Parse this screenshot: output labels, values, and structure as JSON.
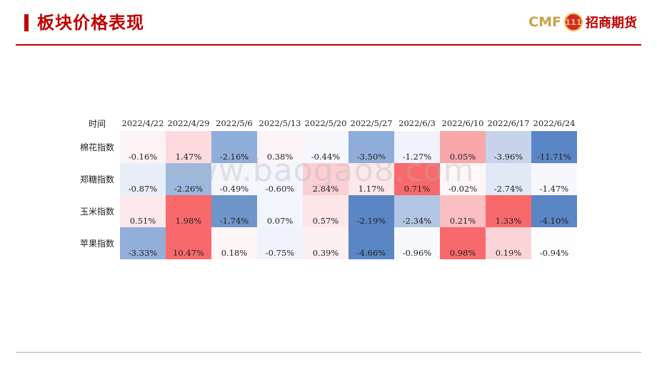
{
  "header": {
    "title": "板块价格表现",
    "logo_text": "CMF",
    "logo_mark": "111",
    "logo_cn": "招商期货"
  },
  "watermark": "www.baogao8.com",
  "table": {
    "corner_label": "时间",
    "columns": [
      "2022/4/22",
      "2022/4/29",
      "2022/5/6",
      "2022/5/13",
      "2022/5/20",
      "2022/5/27",
      "2022/6/3",
      "2022/6/10",
      "2022/6/17",
      "2022/6/24"
    ],
    "rows": [
      {
        "label": "棉花指数",
        "values": [
          "-0.16%",
          "1.47%",
          "-2.16%",
          "0.38%",
          "-0.44%",
          "-3.50%",
          "-1.27%",
          "0.05%",
          "-3.96%",
          "-11.71%"
        ],
        "colors": [
          "#fdf3f4",
          "#fbd9dd",
          "#8fadd9",
          "#fbf3f5",
          "#f6f7fc",
          "#8fadd9",
          "#f0f3fb",
          "#f9a7ab",
          "#c6d3ea",
          "#5b86c5"
        ]
      },
      {
        "label": "郑糖指数",
        "values": [
          "-0.87%",
          "-2.26%",
          "-0.49%",
          "-0.60%",
          "2.84%",
          "1.17%",
          "0.71%",
          "-0.02%",
          "-2.74%",
          "-1.47%"
        ],
        "colors": [
          "#e8eef8",
          "#9db8df",
          "#f4f6fc",
          "#f2f5fc",
          "#fbcfd3",
          "#fce8ea",
          "#f8696b",
          "#fef7f8",
          "#e2e9f6",
          "#f6f7fc"
        ]
      },
      {
        "label": "玉米指数",
        "values": [
          "0.51%",
          "1.98%",
          "-1.74%",
          "0.07%",
          "0.57%",
          "-2.19%",
          "-2.34%",
          "0.21%",
          "1.33%",
          "-4.10%"
        ],
        "colors": [
          "#fce8ea",
          "#f8696b",
          "#6f94ca",
          "#f2f5fc",
          "#fce6e8",
          "#5b86c5",
          "#b3c6e6",
          "#fbbfc3",
          "#f8696b",
          "#5b86c5"
        ]
      },
      {
        "label": "苹果指数",
        "values": [
          "-3.33%",
          "10.47%",
          "0.18%",
          "-0.75%",
          "0.39%",
          "-4.66%",
          "-0.96%",
          "0.98%",
          "0.19%",
          "-0.94%"
        ],
        "colors": [
          "#92afda",
          "#f8696b",
          "#fdf5f6",
          "#f0f3fb",
          "#fdf0f2",
          "#5b86c5",
          "#f8f9fd",
          "#f8696b",
          "#fbd4d8",
          "#fdfdfe"
        ]
      }
    ]
  }
}
